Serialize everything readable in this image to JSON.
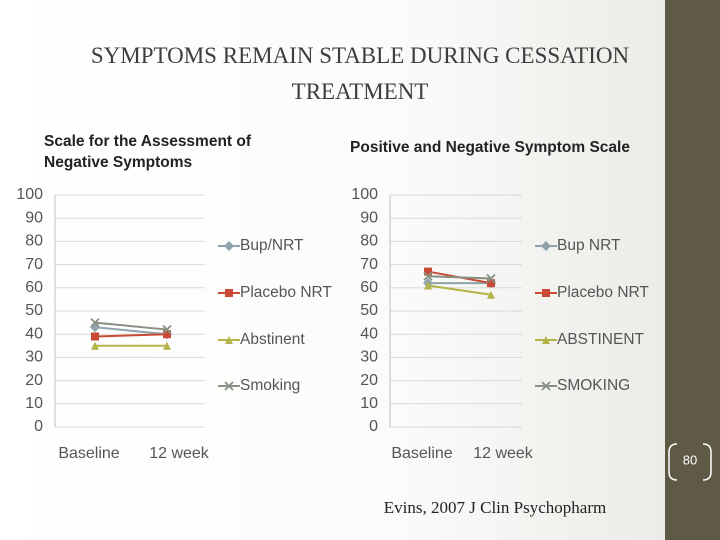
{
  "slide": {
    "title": "SYMPTOMS REMAIN STABLE DURING CESSATION TREATMENT",
    "citation": "Evins, 2007 J Clin Psychopharm",
    "page_number": "80"
  },
  "chart_data": [
    {
      "type": "line",
      "title": "Scale for the Assessment of Negative Symptoms",
      "categories": [
        "Baseline",
        "12 week"
      ],
      "ylim": [
        0,
        100
      ],
      "yticks": [
        0,
        10,
        20,
        30,
        40,
        50,
        60,
        70,
        80,
        90,
        100
      ],
      "grid": true,
      "legend": "right",
      "series": [
        {
          "name": "Bup/NRT",
          "color": "#8ea3ab",
          "marker": "diamond",
          "values": [
            43,
            40
          ]
        },
        {
          "name": "Placebo NRT",
          "color": "#c94a35",
          "marker": "square",
          "values": [
            39,
            40
          ]
        },
        {
          "name": "Abstinent",
          "color": "#b2b448",
          "marker": "triangle",
          "values": [
            35,
            35
          ]
        },
        {
          "name": "Smoking",
          "color": "#889084",
          "marker": "x",
          "values": [
            45,
            42
          ]
        }
      ]
    },
    {
      "type": "line",
      "title": "Positive and Negative Symptom Scale",
      "categories": [
        "Baseline",
        "12 week"
      ],
      "ylim": [
        0,
        100
      ],
      "yticks": [
        0,
        10,
        20,
        30,
        40,
        50,
        60,
        70,
        80,
        90,
        100
      ],
      "grid": true,
      "legend": "right",
      "series": [
        {
          "name": "Bup NRT",
          "color": "#8ea3ab",
          "marker": "diamond",
          "values": [
            62,
            62
          ]
        },
        {
          "name": "Placebo NRT",
          "color": "#c94a35",
          "marker": "square",
          "values": [
            67,
            62
          ]
        },
        {
          "name": "ABSTINENT",
          "color": "#b2b448",
          "marker": "triangle",
          "values": [
            61,
            57
          ]
        },
        {
          "name": "SMOKING",
          "color": "#889084",
          "marker": "x",
          "values": [
            65,
            64
          ]
        }
      ]
    }
  ]
}
